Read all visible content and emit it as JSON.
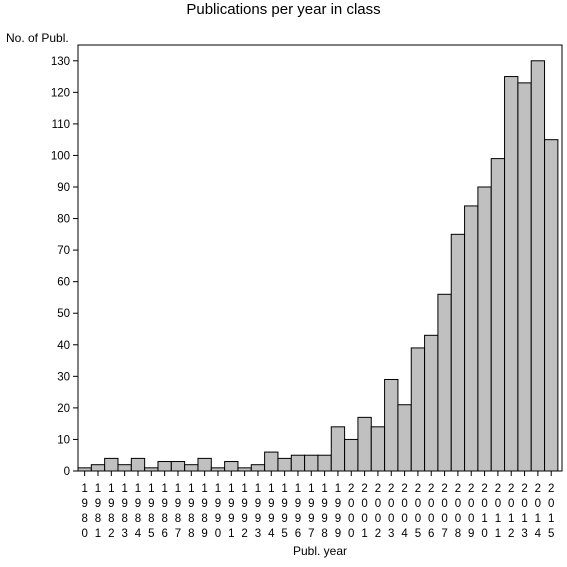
{
  "chart_data": {
    "type": "bar",
    "title": "Publications per year in class",
    "ylabel": "No. of Publ.",
    "xlabel": "Publ. year",
    "ylim": [
      0,
      135
    ],
    "yticks": [
      0,
      10,
      20,
      30,
      40,
      50,
      60,
      70,
      80,
      90,
      100,
      110,
      120,
      130
    ],
    "grid": false,
    "bar_color": "#c0c0c0",
    "categories": [
      "1980",
      "1981",
      "1982",
      "1983",
      "1984",
      "1985",
      "1986",
      "1987",
      "1988",
      "1989",
      "1990",
      "1991",
      "1992",
      "1993",
      "1994",
      "1995",
      "1996",
      "1997",
      "1998",
      "1999",
      "2000",
      "2001",
      "2002",
      "2003",
      "2004",
      "2005",
      "2006",
      "2007",
      "2008",
      "2009",
      "2010",
      "2011",
      "2012",
      "2013",
      "2014",
      "2015"
    ],
    "values": [
      1,
      2,
      4,
      2,
      4,
      1,
      3,
      3,
      2,
      4,
      1,
      3,
      1,
      2,
      6,
      4,
      5,
      5,
      5,
      14,
      10,
      17,
      14,
      29,
      21,
      39,
      43,
      56,
      75,
      84,
      90,
      99,
      125,
      123,
      130,
      105
    ]
  }
}
